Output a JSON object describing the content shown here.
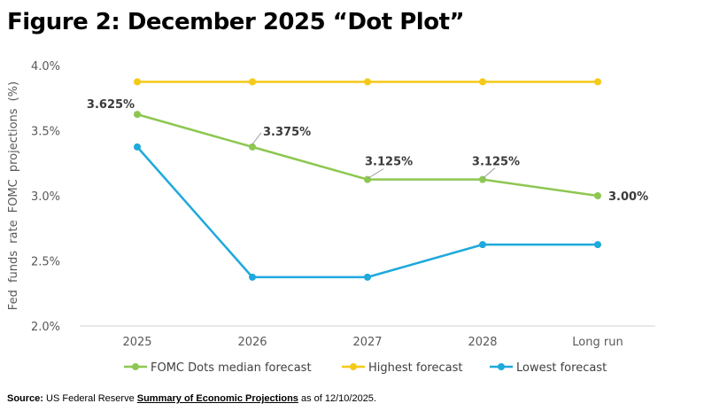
{
  "title": "Figure 2: December 2025 “Dot Plot”",
  "chart_data": {
    "type": "line",
    "categories": [
      "2025",
      "2026",
      "2027",
      "2028",
      "Long run"
    ],
    "ylabel": "Fed funds rate FOMC projections (%)",
    "ylim": [
      2.0,
      4.0
    ],
    "yticks": [
      "2.0%",
      "2.5%",
      "3.0%",
      "3.5%",
      "4.0%"
    ],
    "grid": false,
    "legend_position": "bottom",
    "series": [
      {
        "name": "FOMC Dots median forecast",
        "color": "#8dc751",
        "values": [
          3.625,
          3.375,
          3.125,
          3.125,
          3.0
        ],
        "labels": [
          "3.625%",
          "3.375%",
          "3.125%",
          "3.125%",
          "3.00%"
        ]
      },
      {
        "name": "Highest forecast",
        "color": "#f5c918",
        "values": [
          3.875,
          3.875,
          3.875,
          3.875,
          3.875
        ]
      },
      {
        "name": "Lowest forecast",
        "color": "#1fa9dc",
        "values": [
          3.375,
          2.375,
          2.375,
          2.625,
          2.625
        ]
      }
    ]
  },
  "source": {
    "label": "Source:",
    "text_before": "US Federal Reserve",
    "link": "Summary of Economic Projections",
    "text_after": "as of 12/10/2025."
  }
}
